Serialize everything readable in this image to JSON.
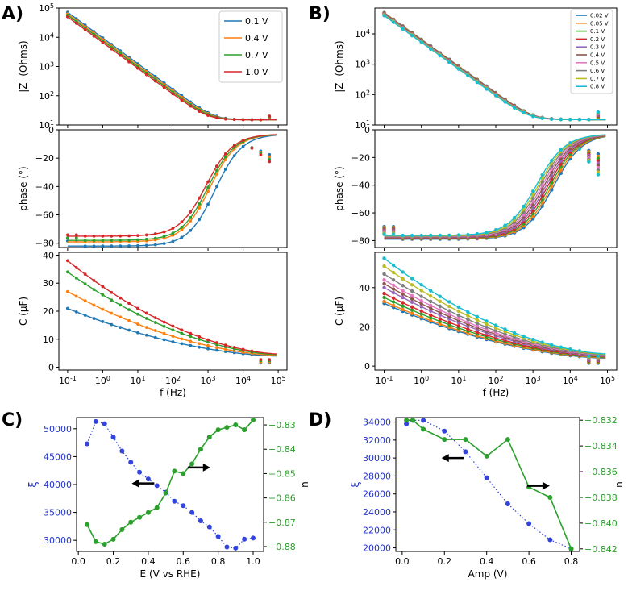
{
  "figure": {
    "panel_letters": [
      "A)",
      "B)",
      "C)",
      "D)"
    ]
  },
  "chart_data": [
    {
      "id": "A",
      "type": "line",
      "legend": {
        "entries": [
          "0.1 V",
          "0.4 V",
          "0.7 V",
          "1.0 V"
        ],
        "colors": [
          "#1f77b4",
          "#ff7f0e",
          "#2ca02c",
          "#d62728"
        ],
        "placement": "top-right"
      },
      "xlabel": "f (Hz)",
      "x_ticks": [
        "10^-1",
        "10^0",
        "10^1",
        "10^2",
        "10^3",
        "10^4",
        "10^5"
      ],
      "xlim_log10": [
        -1.25,
        5.25
      ],
      "subplots": [
        {
          "kind": "impedance",
          "ylabel": "|Z| (Ohms)",
          "y_ticks": [
            "10^1",
            "10^2",
            "10^3",
            "10^4",
            "10^5"
          ],
          "ylim_log10": [
            1,
            5
          ]
        },
        {
          "kind": "phase",
          "ylabel": "phase (°)",
          "y_ticks": [
            "0",
            "−20",
            "−40",
            "−60",
            "−80"
          ],
          "ylim": [
            -83,
            0
          ]
        },
        {
          "kind": "capacitance",
          "ylabel": "C (μF)",
          "y_ticks": [
            "0",
            "10",
            "20",
            "30",
            "40"
          ],
          "ylim": [
            -1,
            41
          ]
        }
      ],
      "series": [
        {
          "name": "0.1 V",
          "Z_low": 72000,
          "Z_floor": 15,
          "phase_low": -80,
          "phase_mid": -79,
          "corner_log10": 3.2,
          "C_low": 21
        },
        {
          "name": "0.4 V",
          "Z_low": 63000,
          "Z_floor": 15,
          "phase_low": -77,
          "phase_mid": -76,
          "corner_log10": 3.05,
          "C_low": 27
        },
        {
          "name": "0.7 V",
          "Z_low": 57000,
          "Z_floor": 15,
          "phase_low": -75,
          "phase_mid": -75,
          "corner_log10": 3.0,
          "C_low": 34
        },
        {
          "name": "1.0 V",
          "Z_low": 50000,
          "Z_floor": 15,
          "phase_low": -73,
          "phase_mid": -72,
          "corner_log10": 2.95,
          "C_low": 38
        }
      ]
    },
    {
      "id": "B",
      "type": "line",
      "legend": {
        "entries": [
          "0.02 V",
          "0.05 V",
          "0.1 V",
          "0.2 V",
          "0.3 V",
          "0.4 V",
          "0.5 V",
          "0.6 V",
          "0.7 V",
          "0.8 V"
        ],
        "colors": [
          "#1f77b4",
          "#ff7f0e",
          "#2ca02c",
          "#d62728",
          "#9467bd",
          "#8c564b",
          "#e377c2",
          "#7f7f7f",
          "#bcbd22",
          "#17becf"
        ],
        "placement": "top-right"
      },
      "xlabel": "f (Hz)",
      "x_ticks": [
        "10^-1",
        "10^0",
        "10^1",
        "10^2",
        "10^3",
        "10^4",
        "10^5"
      ],
      "xlim_log10": [
        -1.25,
        5.25
      ],
      "subplots": [
        {
          "kind": "impedance",
          "ylabel": "|Z| (Ohms)",
          "y_ticks": [
            "10^1",
            "10^2",
            "10^3",
            "10^4"
          ],
          "ylim_log10": [
            1,
            4.85
          ]
        },
        {
          "kind": "phase",
          "ylabel": "phase (°)",
          "y_ticks": [
            "0",
            "−20",
            "−40",
            "−60",
            "−80"
          ],
          "ylim": [
            -85,
            0
          ]
        },
        {
          "kind": "capacitance",
          "ylabel": "C (μF)",
          "y_ticks": [
            "0",
            "20",
            "40"
          ],
          "ylim": [
            -2,
            58
          ]
        }
      ],
      "series": [
        {
          "name": "0.02 V",
          "Z_low": 50000,
          "C_low": 32,
          "corner_log10": 3.55
        },
        {
          "name": "0.05 V",
          "Z_low": 49000,
          "C_low": 33,
          "corner_log10": 3.5
        },
        {
          "name": "0.1 V",
          "Z_low": 48000,
          "C_low": 35,
          "corner_log10": 3.45
        },
        {
          "name": "0.2 V",
          "Z_low": 47000,
          "C_low": 37,
          "corner_log10": 3.4
        },
        {
          "name": "0.3 V",
          "Z_low": 46000,
          "C_low": 40,
          "corner_log10": 3.35
        },
        {
          "name": "0.4 V",
          "Z_low": 45000,
          "C_low": 42,
          "corner_log10": 3.3
        },
        {
          "name": "0.5 V",
          "Z_low": 44000,
          "C_low": 44,
          "corner_log10": 3.25
        },
        {
          "name": "0.6 V",
          "Z_low": 43000,
          "C_low": 47,
          "corner_log10": 3.2
        },
        {
          "name": "0.7 V",
          "Z_low": 42000,
          "C_low": 51,
          "corner_log10": 3.15
        },
        {
          "name": "0.8 V",
          "Z_low": 40000,
          "C_low": 55,
          "corner_log10": 3.1
        }
      ]
    },
    {
      "id": "C",
      "type": "line",
      "xlabel": "E (V vs RHE)",
      "x_ticks": [
        "0.0",
        "0.2",
        "0.4",
        "0.6",
        "0.8",
        "1.0"
      ],
      "xlim": [
        -0.01,
        1.06
      ],
      "left_axis": {
        "label": "ξ",
        "color": "#2233cc",
        "ticks": [
          "30000",
          "35000",
          "40000",
          "45000",
          "50000"
        ],
        "ylim": [
          28000,
          52000
        ]
      },
      "right_axis": {
        "label": "n",
        "color": "#2ca02c",
        "ticks": [
          "−0.88",
          "−0.87",
          "−0.86",
          "−0.85",
          "−0.84",
          "−0.83"
        ],
        "ylim": [
          -0.882,
          -0.827
        ]
      },
      "x": [
        0.05,
        0.1,
        0.15,
        0.2,
        0.25,
        0.3,
        0.35,
        0.4,
        0.45,
        0.5,
        0.55,
        0.6,
        0.65,
        0.7,
        0.75,
        0.8,
        0.85,
        0.9,
        0.95,
        1.0
      ],
      "series": [
        {
          "name": "ξ",
          "axis": "left",
          "style": "dotted",
          "values": [
            47300,
            51300,
            50900,
            48500,
            46000,
            44000,
            42200,
            41000,
            39800,
            38600,
            37000,
            36200,
            35000,
            33500,
            32400,
            30700,
            28800,
            28600,
            30200,
            30400
          ]
        },
        {
          "name": "n",
          "axis": "right",
          "style": "solid",
          "values": [
            -0.871,
            -0.878,
            -0.879,
            -0.877,
            -0.873,
            -0.87,
            -0.868,
            -0.866,
            -0.864,
            -0.858,
            -0.849,
            -0.85,
            -0.846,
            -0.84,
            -0.835,
            -0.832,
            -0.831,
            -0.83,
            -0.832,
            -0.828
          ]
        }
      ],
      "annotations": [
        {
          "kind": "arrow-left",
          "at_x": 0.37,
          "at_y_left": 40200
        },
        {
          "kind": "arrow-right",
          "at_x": 0.69,
          "at_y_right": -0.8475
        }
      ]
    },
    {
      "id": "D",
      "type": "line",
      "xlabel": "Amp (V)",
      "x_ticks": [
        "0.0",
        "0.2",
        "0.4",
        "0.6",
        "0.8"
      ],
      "xlim": [
        -0.03,
        0.84
      ],
      "left_axis": {
        "label": "ξ",
        "color": "#2233cc",
        "ticks": [
          "20000",
          "22000",
          "24000",
          "26000",
          "28000",
          "30000",
          "32000",
          "34000"
        ],
        "ylim": [
          19600,
          34500
        ]
      },
      "right_axis": {
        "label": "n",
        "color": "#2ca02c",
        "ticks": [
          "−0.842",
          "−0.840",
          "−0.838",
          "−0.836",
          "−0.834",
          "−0.832"
        ],
        "ylim": [
          -0.8422,
          -0.8318
        ]
      },
      "x": [
        0.02,
        0.05,
        0.1,
        0.2,
        0.3,
        0.4,
        0.5,
        0.6,
        0.7,
        0.8
      ],
      "series": [
        {
          "name": "ξ",
          "axis": "left",
          "style": "dotted",
          "values": [
            33800,
            34200,
            34200,
            33000,
            30700,
            27800,
            24900,
            22700,
            20900,
            19900
          ]
        },
        {
          "name": "n",
          "axis": "right",
          "style": "solid",
          "values": [
            -0.832,
            -0.832,
            -0.8327,
            -0.8335,
            -0.8335,
            -0.8348,
            -0.8335,
            -0.8372,
            -0.838,
            -0.842
          ]
        }
      ],
      "annotations": [
        {
          "kind": "arrow-left",
          "at_x": 0.24,
          "at_y_left": 30000
        },
        {
          "kind": "arrow-right",
          "at_x": 0.645,
          "at_y_left": 26900
        }
      ]
    }
  ]
}
